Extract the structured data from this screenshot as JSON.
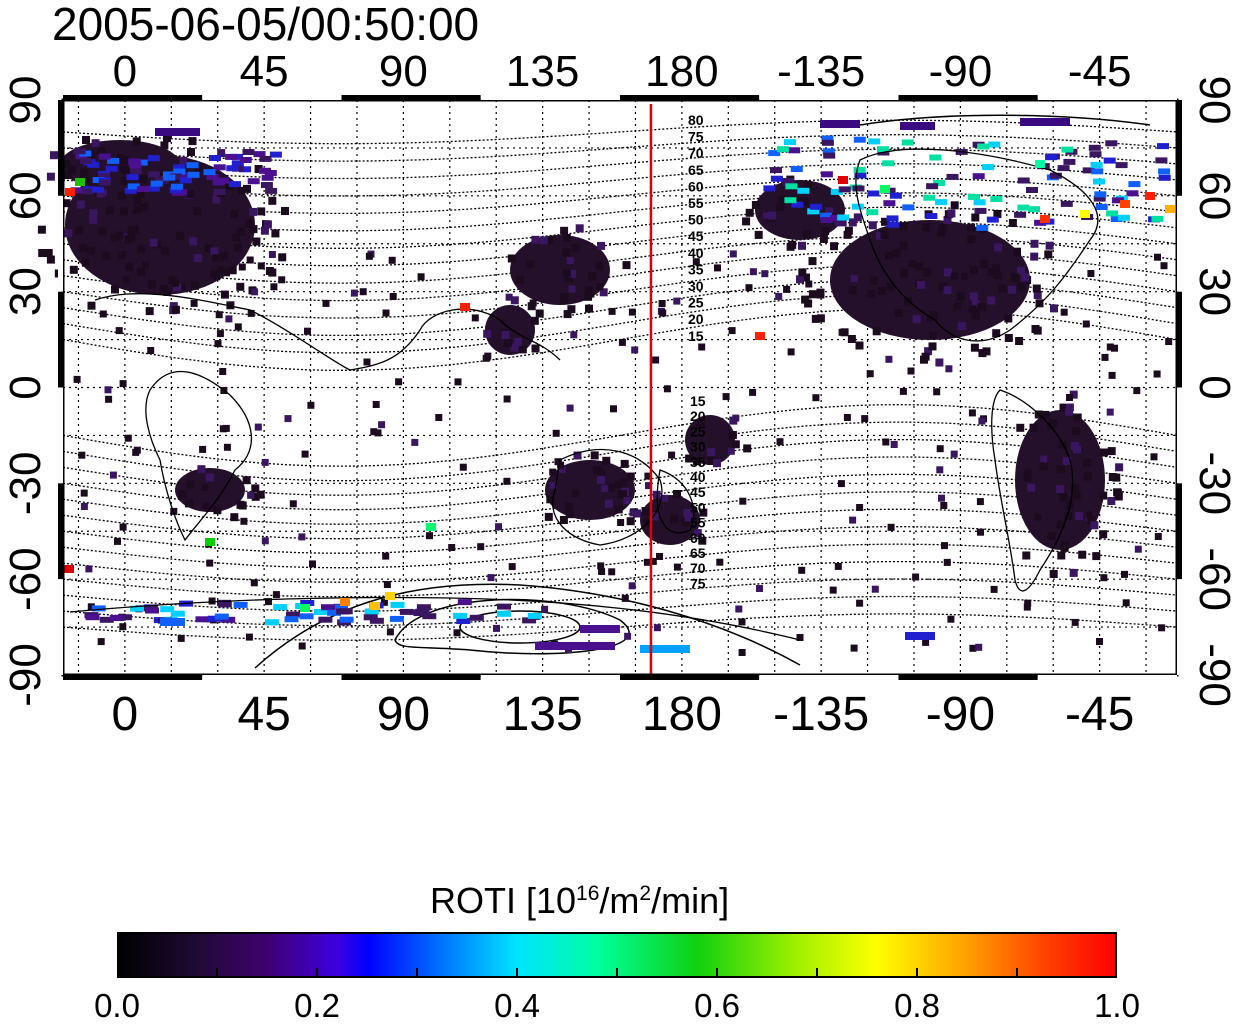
{
  "title": "2005-06-05/00:50:00",
  "colors": {
    "frame": "#000000",
    "grid": "#000000",
    "meridian_line": "#e00000",
    "land_coast": "#000000",
    "low_value": "#1c0a1e",
    "colormap": [
      "#000000",
      "#250a3a",
      "#4a0078",
      "#3f00c8",
      "#0000ff",
      "#0070ff",
      "#00dfff",
      "#00ff90",
      "#20d000",
      "#c0ff00",
      "#ffff00",
      "#ffa000",
      "#ff4000",
      "#ff0000"
    ]
  },
  "map": {
    "type": "geomagnetic-latitude-overlay",
    "top_axis_ticks": [
      "0",
      "45",
      "90",
      "135",
      "180",
      "-135",
      "-90",
      "-45"
    ],
    "bottom_axis_ticks": [
      "0",
      "45",
      "90",
      "135",
      "180",
      "-135",
      "-90",
      "-45"
    ],
    "left_axis_ticks": [
      "90",
      "60",
      "30",
      "0",
      "-30",
      "-60",
      "-90"
    ],
    "right_axis_ticks": [
      "90",
      "60",
      "30",
      "0",
      "-30",
      "-60",
      "-90"
    ],
    "longitude_range": [
      -20,
      340
    ],
    "latitude_range": [
      -90,
      90
    ],
    "red_line_longitude": 170,
    "contour_labels_north": [
      "80",
      "75",
      "70",
      "65",
      "60",
      "55",
      "50",
      "45",
      "40",
      "35",
      "30",
      "25",
      "20",
      "15"
    ],
    "contour_labels_south": [
      "15",
      "20",
      "25",
      "30",
      "35",
      "40",
      "45",
      "50",
      "55",
      "60",
      "65",
      "70",
      "75"
    ]
  },
  "colorbar": {
    "title_prefix": "ROTI  [10",
    "title_sup1": "16",
    "title_mid": "/m",
    "title_sup2": "2",
    "title_suffix": "/min]",
    "ticks": [
      "0.0",
      "0.2",
      "0.4",
      "0.6",
      "0.8",
      "1.0"
    ],
    "range": [
      0.0,
      1.0
    ]
  }
}
